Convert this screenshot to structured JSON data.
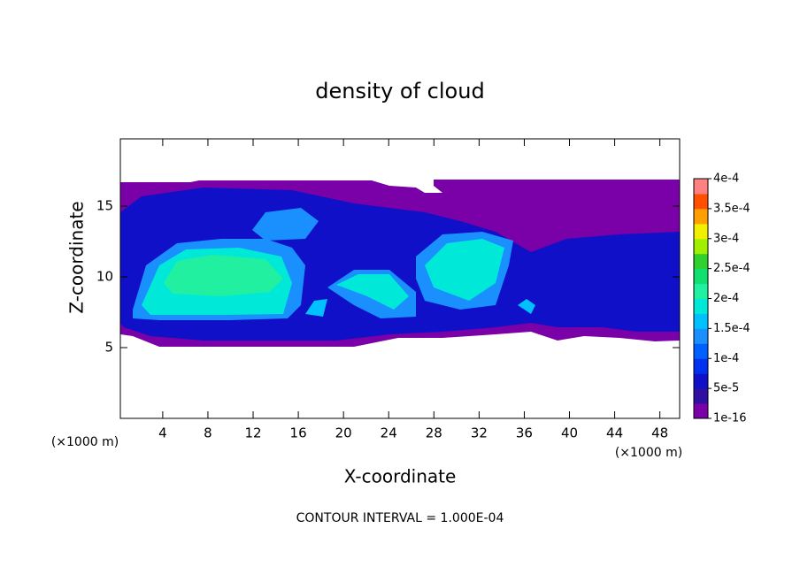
{
  "chart_data": {
    "type": "contour",
    "title": "density of cloud",
    "xlabel": "X-coordinate",
    "ylabel": "Z-coordinate",
    "x_unit": "(×1000 m)",
    "y_unit": "(×1000 m)",
    "note": "CONTOUR INTERVAL = 1.000E-04",
    "xlim": [
      0.25,
      49.75
    ],
    "xticks": [
      4,
      8,
      12,
      16,
      20,
      24,
      28,
      32,
      36,
      40,
      44,
      48
    ],
    "ylim": [
      0,
      19.75
    ],
    "yticks": [
      5,
      10,
      15
    ],
    "colorbar": {
      "ticks": [
        {
          "value": 1e-16,
          "label": "1e-16"
        },
        {
          "value": 5e-05,
          "label": "5e-5"
        },
        {
          "value": 0.0001,
          "label": "1e-4"
        },
        {
          "value": 0.00015,
          "label": "1.5e-4"
        },
        {
          "value": 0.0002,
          "label": "2e-4"
        },
        {
          "value": 0.00025,
          "label": "2.5e-4"
        },
        {
          "value": 0.0003,
          "label": "3e-4"
        },
        {
          "value": 0.00035,
          "label": "3.5e-4"
        },
        {
          "value": 0.0004,
          "label": "4e-4"
        }
      ],
      "colors": [
        "#7a00a8",
        "#3010a0",
        "#1010c8",
        "#0030f0",
        "#0060ff",
        "#1a90ff",
        "#00c0ff",
        "#00e8d8",
        "#20f0a0",
        "#10e070",
        "#30d030",
        "#a0f000",
        "#f0f000",
        "#ffa000",
        "#ff5000",
        "#ff8080"
      ]
    }
  }
}
